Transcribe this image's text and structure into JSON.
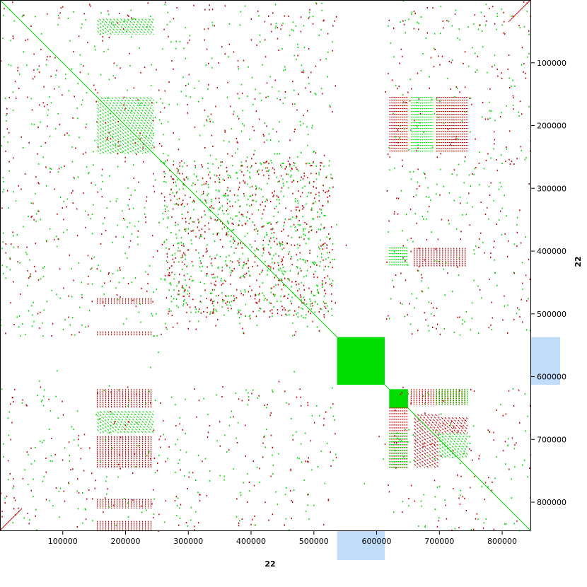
{
  "chart_data": {
    "type": "scatter",
    "xlabel": "22",
    "ylabel": "22",
    "xlim": [
      0,
      845000
    ],
    "ylim": [
      0,
      845000
    ],
    "x_ticks": [
      100000,
      200000,
      300000,
      400000,
      500000,
      600000,
      700000,
      800000
    ],
    "y_ticks": [
      100000,
      200000,
      300000,
      400000,
      500000,
      600000,
      700000,
      800000
    ],
    "x_tick_labels": [
      "100000",
      "200000",
      "300000",
      "400000",
      "500000",
      "600000",
      "700000",
      "800000"
    ],
    "y_tick_labels": [
      "100000",
      "200000",
      "300000",
      "400000",
      "500000",
      "600000",
      "700000",
      "800000"
    ],
    "colors": {
      "forward": "#00dd00",
      "reverse": "#cc0000",
      "highlight": "#c0dcf8",
      "axis": "#000000"
    },
    "highlighted_interval": [
      537000,
      613000
    ],
    "blocks": [
      {
        "x": [
          537000,
          613000
        ],
        "y": [
          537000,
          613000
        ],
        "strand": "forward",
        "kind": "solid"
      }
    ],
    "diagonals": [
      {
        "x": [
          0,
          845000
        ],
        "y": [
          0,
          845000
        ],
        "strand": "forward"
      },
      {
        "x": [
          0,
          35000
        ],
        "y": [
          845000,
          810000
        ],
        "strand": "reverse"
      },
      {
        "x": [
          810000,
          845000
        ],
        "y": [
          35000,
          0
        ],
        "strand": "reverse"
      }
    ],
    "regions": [
      {
        "x": [
          155000,
          245000
        ],
        "y": [
          155000,
          245000
        ],
        "strand": "forward",
        "pattern": "diagonal"
      },
      {
        "x": [
          155000,
          245000
        ],
        "y": [
          30000,
          55000
        ],
        "strand": "forward",
        "pattern": "diagonal"
      },
      {
        "x": [
          155000,
          245000
        ],
        "y": [
          620000,
          650000
        ],
        "strand": "reverse",
        "pattern": "vertical"
      },
      {
        "x": [
          155000,
          245000
        ],
        "y": [
          655000,
          690000
        ],
        "strand": "forward",
        "pattern": "diagonal"
      },
      {
        "x": [
          155000,
          245000
        ],
        "y": [
          695000,
          745000
        ],
        "strand": "reverse",
        "pattern": "vertical"
      },
      {
        "x": [
          155000,
          245000
        ],
        "y": [
          795000,
          810000
        ],
        "strand": "reverse",
        "pattern": "vertical"
      },
      {
        "x": [
          155000,
          245000
        ],
        "y": [
          830000,
          845000
        ],
        "strand": "reverse",
        "pattern": "vertical"
      },
      {
        "x": [
          155000,
          245000
        ],
        "y": [
          475000,
          485000
        ],
        "strand": "reverse",
        "pattern": "vertical"
      },
      {
        "x": [
          155000,
          245000
        ],
        "y": [
          528000,
          535000
        ],
        "strand": "reverse",
        "pattern": "vertical"
      },
      {
        "x": [
          620000,
          650000
        ],
        "y": [
          155000,
          245000
        ],
        "strand": "reverse",
        "pattern": "horizontal"
      },
      {
        "x": [
          655000,
          690000
        ],
        "y": [
          155000,
          245000
        ],
        "strand": "forward",
        "pattern": "horizontal"
      },
      {
        "x": [
          695000,
          745000
        ],
        "y": [
          155000,
          245000
        ],
        "strand": "reverse",
        "pattern": "horizontal"
      },
      {
        "x": [
          620000,
          650000
        ],
        "y": [
          620000,
          650000
        ],
        "strand": "forward",
        "pattern": "solid"
      },
      {
        "x": [
          655000,
          745000
        ],
        "y": [
          620000,
          645000
        ],
        "strand": "reverse",
        "pattern": "vertical"
      },
      {
        "x": [
          695000,
          745000
        ],
        "y": [
          620000,
          645000
        ],
        "strand": "forward",
        "pattern": "vertical"
      },
      {
        "x": [
          620000,
          650000
        ],
        "y": [
          650000,
          745000
        ],
        "strand": "reverse",
        "pattern": "horizontal"
      },
      {
        "x": [
          620000,
          650000
        ],
        "y": [
          690000,
          745000
        ],
        "strand": "forward",
        "pattern": "horizontal"
      },
      {
        "x": [
          660000,
          700000
        ],
        "y": [
          660000,
          745000
        ],
        "strand": "reverse",
        "pattern": "diagonal"
      },
      {
        "x": [
          700000,
          745000
        ],
        "y": [
          690000,
          730000
        ],
        "strand": "forward",
        "pattern": "diagonal"
      },
      {
        "x": [
          700000,
          745000
        ],
        "y": [
          665000,
          690000
        ],
        "strand": "reverse",
        "pattern": "diagonal"
      },
      {
        "x": [
          620000,
          650000
        ],
        "y": [
          395000,
          425000
        ],
        "strand": "forward",
        "pattern": "horizontal"
      },
      {
        "x": [
          660000,
          745000
        ],
        "y": [
          395000,
          425000
        ],
        "strand": "reverse",
        "pattern": "vertical"
      },
      {
        "x": [
          260000,
          530000
        ],
        "y": [
          255000,
          505000
        ],
        "strand": "mixed",
        "pattern": "scatter"
      },
      {
        "x": [
          0,
          845000
        ],
        "y": [
          0,
          845000
        ],
        "strand": "mixed",
        "pattern": "background"
      }
    ]
  }
}
